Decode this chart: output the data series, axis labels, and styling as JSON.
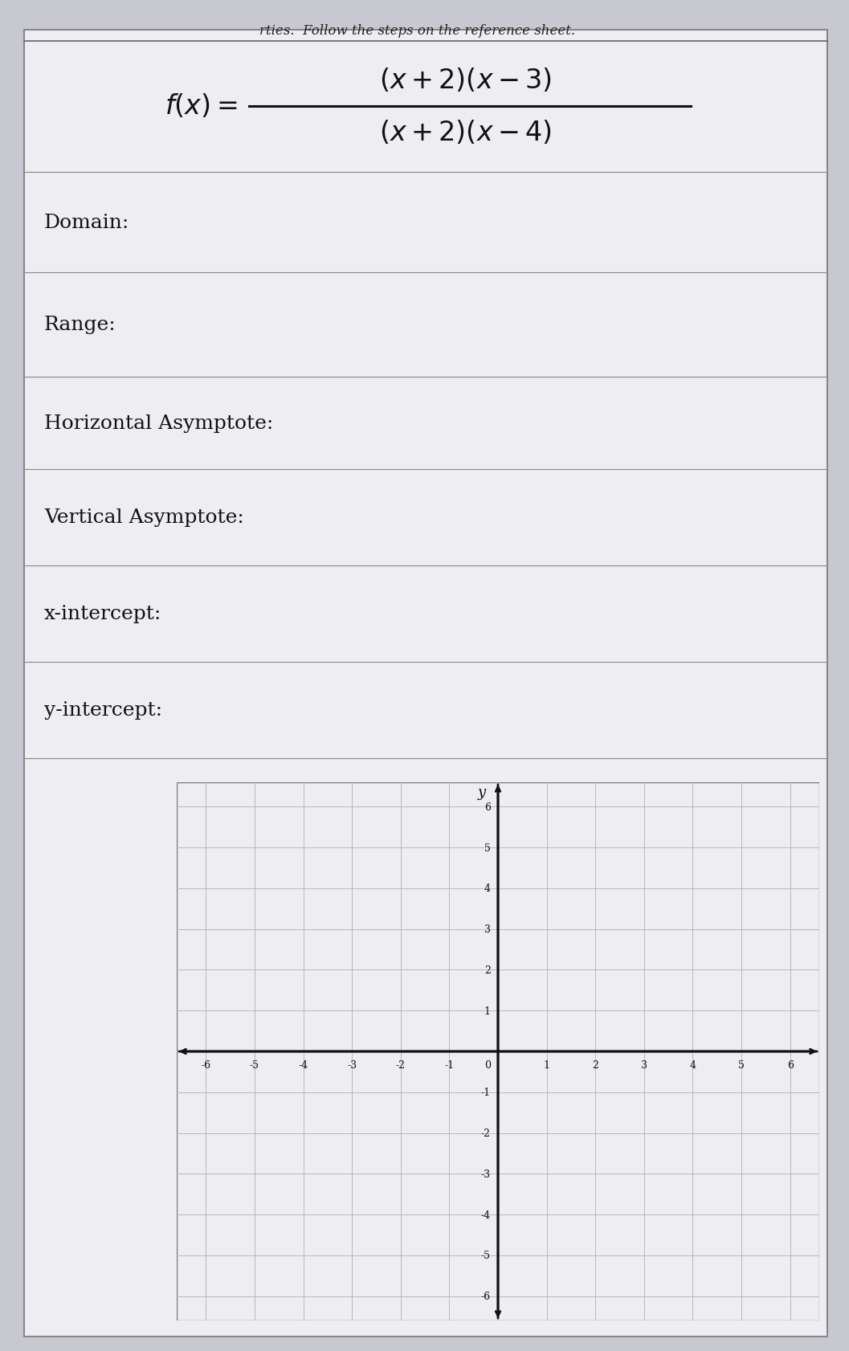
{
  "bg_color": "#c8c8d0",
  "paper_color": "#eeeef2",
  "header_text": "rties.  Follow the steps on the reference sheet.",
  "labels": [
    "Domain:",
    "Range:",
    "Horizontal Asymptote:",
    "Vertical Asymptote:",
    "x-intercept:",
    "y-intercept:"
  ],
  "grid_xlim": [
    -6,
    6
  ],
  "grid_ylim": [
    -6,
    6
  ],
  "grid_color": "#b0b0b0",
  "axis_color": "#111111",
  "tick_labels_x": [
    -6,
    -5,
    -4,
    -3,
    -2,
    -1,
    1,
    2,
    3,
    4,
    5,
    6
  ],
  "tick_labels_y": [
    6,
    5,
    4,
    3,
    2,
    1,
    -1,
    -2,
    -3,
    -4,
    -5,
    -6
  ]
}
